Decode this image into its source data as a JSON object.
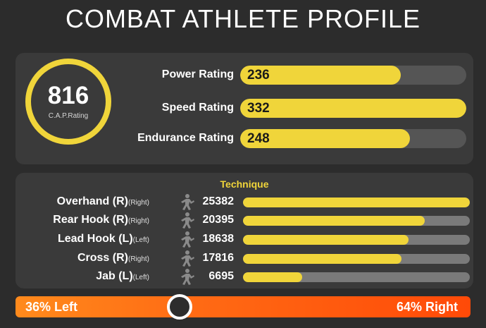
{
  "title": "COMBAT ATHLETE PROFILE",
  "cap": {
    "value": "816",
    "label": "C.A.P.Rating"
  },
  "ratings": [
    {
      "label": "Power Rating",
      "value": "236",
      "fill": 0.71
    },
    {
      "label": "Speed Rating",
      "value": "332",
      "fill": 1.0
    },
    {
      "label": "Endurance Rating",
      "value": "248",
      "fill": 0.75
    }
  ],
  "technique": {
    "title": "Technique",
    "rows": [
      {
        "name": "Overhand (R)",
        "side": "(Right)",
        "count": "25382",
        "fill": 1.0
      },
      {
        "name": "Rear Hook (R)",
        "side": "(Right)",
        "count": "20395",
        "fill": 0.8
      },
      {
        "name": "Lead Hook (L)",
        "side": "(Left)",
        "count": "18638",
        "fill": 0.73
      },
      {
        "name": "Cross (R)",
        "side": "(Right)",
        "count": "17816",
        "fill": 0.7
      },
      {
        "name": "Jab (L)",
        "side": "(Left)",
        "count": "6695",
        "fill": 0.26
      }
    ]
  },
  "balance": {
    "left_label": "36% Left",
    "right_label": "64% Right",
    "left_fraction": 0.36
  },
  "colors": {
    "accent": "#f0d53a",
    "background": "#2c2c2c",
    "panel": "#3a3a3a",
    "orange": "#ff6a14"
  },
  "icons": {
    "technique": "fighter-icon"
  }
}
